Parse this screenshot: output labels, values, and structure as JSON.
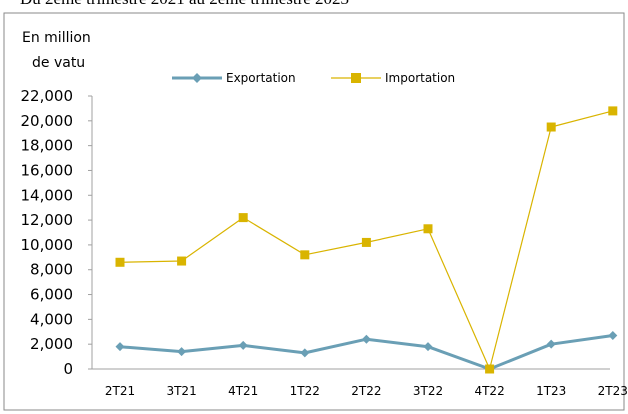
{
  "chart_data": {
    "type": "line",
    "title": "Du 2ème trimestre 2021 au 2ème trimestre 2023",
    "ylabel_line1": "En million",
    "ylabel_line2": "de vatu",
    "categories": [
      "2T21",
      "3T21",
      "4T21",
      "1T22",
      "2T22",
      "3T22",
      "4T22",
      "1T23",
      "2T23"
    ],
    "y_ticks": [
      "0",
      "2,000",
      "4,000",
      "6,000",
      "8,000",
      "10,000",
      "12,000",
      "14,000",
      "16,000",
      "18,000",
      "20,000",
      "22,000"
    ],
    "ylim": [
      0,
      22000
    ],
    "grid": false,
    "legend_position": "top",
    "series": [
      {
        "name": "Exportation",
        "color": "#6a9fb5",
        "marker": "diamond",
        "values": [
          1800,
          1400,
          1900,
          1300,
          2400,
          1800,
          0,
          2000,
          2700
        ]
      },
      {
        "name": "Importation",
        "color": "#d9b400",
        "marker": "square",
        "values": [
          8600,
          8700,
          12200,
          9200,
          10200,
          11300,
          0,
          19500,
          20800
        ]
      }
    ]
  }
}
